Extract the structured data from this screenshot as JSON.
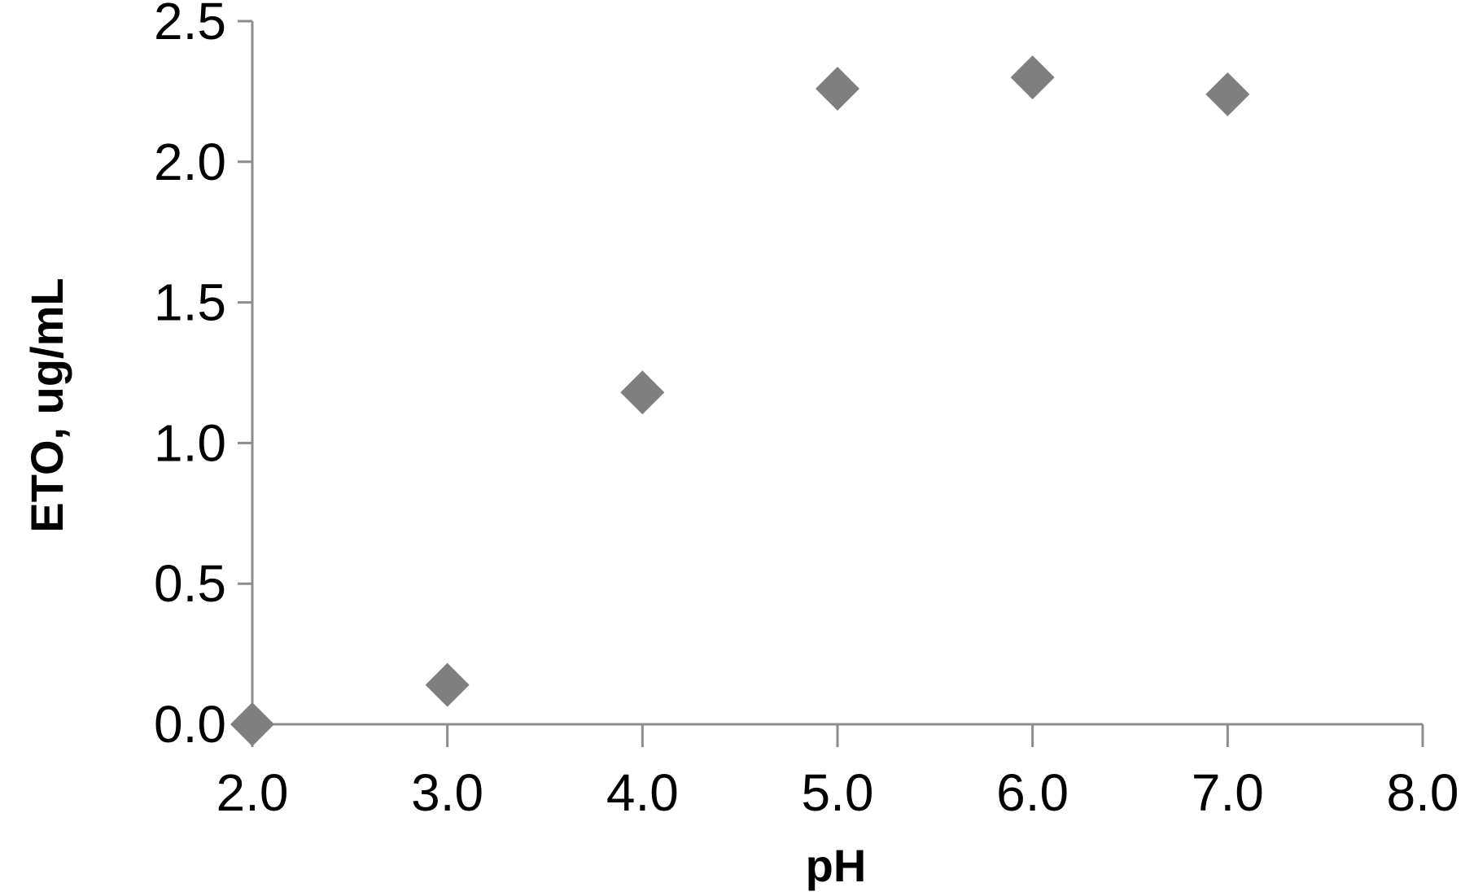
{
  "chart_data": {
    "type": "scatter",
    "title": "",
    "xlabel": "pH",
    "ylabel": "ETO, ug/mL",
    "xlim": [
      2.0,
      8.0
    ],
    "ylim": [
      0.0,
      2.5
    ],
    "x_ticks": [
      "2.0",
      "3.0",
      "4.0",
      "5.0",
      "6.0",
      "7.0",
      "8.0"
    ],
    "y_ticks": [
      "0.0",
      "0.5",
      "1.0",
      "1.5",
      "2.0",
      "2.5"
    ],
    "grid": false,
    "marker": "diamond",
    "colors": {
      "marker": "#7f7f7f",
      "axis": "#8c8c8c",
      "text": "#000000"
    },
    "series": [
      {
        "points": [
          {
            "x": 2.0,
            "y": 0.0
          },
          {
            "x": 3.0,
            "y": 0.14
          },
          {
            "x": 4.0,
            "y": 1.18
          },
          {
            "x": 5.0,
            "y": 2.26
          },
          {
            "x": 6.0,
            "y": 2.3
          },
          {
            "x": 7.0,
            "y": 2.24
          }
        ]
      }
    ]
  }
}
